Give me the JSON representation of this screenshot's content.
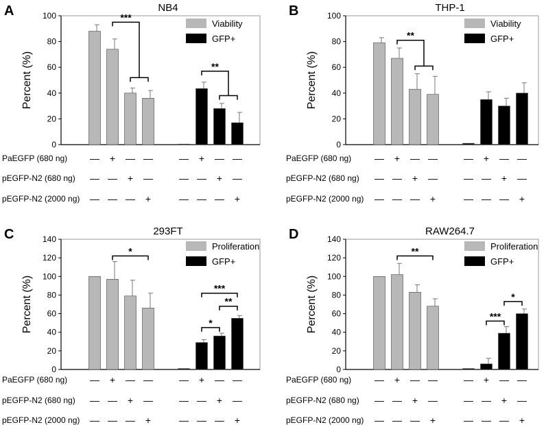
{
  "colors": {
    "viability": "#b8b8b8",
    "gfp": "#000000",
    "axis": "#000000",
    "error": "#777777"
  },
  "legend_labels": {
    "viability": "Viability",
    "proliferation": "Proliferation",
    "gfp": "GFP+"
  },
  "row_labels": [
    "PaEGFP (680 ng)",
    "pEGFP-N2 (680 ng)",
    "pEGFP-N2 (2000 ng)"
  ],
  "matrix": [
    [
      "—",
      "+",
      "—",
      "—",
      "—",
      "+",
      "—",
      "—"
    ],
    [
      "—",
      "—",
      "+",
      "—",
      "—",
      "—",
      "+",
      "—"
    ],
    [
      "—",
      "—",
      "—",
      "+",
      "—",
      "—",
      "—",
      "+"
    ]
  ],
  "chart_data": [
    {
      "type": "bar",
      "panel_letter": "A",
      "title": "NB4",
      "ylabel": "Percent (%)",
      "ylim": [
        0,
        100
      ],
      "yticks": [
        "0",
        "20",
        "40",
        "60",
        "80",
        "100"
      ],
      "legend_key": "viability",
      "series": [
        {
          "name": "Viability",
          "values": [
            88,
            74,
            40,
            36
          ],
          "errors": [
            5,
            8,
            4,
            6
          ]
        },
        {
          "name": "GFP+",
          "values": [
            0.3,
            43.5,
            28,
            17
          ],
          "errors": [
            0,
            5,
            4,
            8
          ]
        }
      ],
      "significance": [
        {
          "label": "***",
          "type": "bracket",
          "x1": 1,
          "x2": 2.5,
          "y": 95,
          "drop": 5,
          "sub": [
            2,
            3,
            52,
            2
          ]
        },
        {
          "label": "**",
          "type": "bracket",
          "x1": 5,
          "x2": 6.5,
          "y": 57,
          "drop": 5,
          "sub": [
            6,
            7,
            38,
            2
          ]
        }
      ]
    },
    {
      "type": "bar",
      "panel_letter": "B",
      "title": "THP-1",
      "ylabel": "Percent (%)",
      "ylim": [
        0,
        100
      ],
      "yticks": [
        "0",
        "20",
        "40",
        "60",
        "80",
        "100"
      ],
      "legend_key": "viability",
      "series": [
        {
          "name": "Viability",
          "values": [
            79,
            67,
            43,
            39
          ],
          "errors": [
            4,
            8,
            12,
            14
          ]
        },
        {
          "name": "GFP+",
          "values": [
            1,
            35,
            30,
            40
          ],
          "errors": [
            0,
            6,
            6,
            8
          ]
        }
      ],
      "significance": [
        {
          "label": "**",
          "type": "bracket",
          "x1": 1,
          "x2": 2.5,
          "y": 81,
          "drop": 5,
          "sub": [
            2,
            3,
            61,
            3
          ]
        }
      ]
    },
    {
      "type": "bar",
      "panel_letter": "C",
      "title": "293FT",
      "ylabel": "Percent (%)",
      "ylim": [
        0,
        140
      ],
      "yticks": [
        "0",
        "20",
        "40",
        "60",
        "80",
        "100",
        "120",
        "140"
      ],
      "legend_key": "proliferation",
      "series": [
        {
          "name": "Proliferation",
          "values": [
            100,
            97,
            79,
            66
          ],
          "errors": [
            0,
            19,
            17,
            16
          ]
        },
        {
          "name": "GFP+",
          "values": [
            1,
            29,
            36,
            55
          ],
          "errors": [
            0,
            3,
            3,
            3
          ]
        }
      ],
      "significance": [
        {
          "label": "*",
          "type": "line",
          "x1": 1,
          "x2": 3,
          "y": 122,
          "drop": 5
        },
        {
          "label": "***",
          "type": "line",
          "x1": 5,
          "x2": 7,
          "y": 82,
          "drop": 5
        },
        {
          "label": "**",
          "type": "line",
          "x1": 6,
          "x2": 7,
          "y": 68,
          "drop": 5
        },
        {
          "label": "*",
          "type": "line",
          "x1": 5,
          "x2": 6,
          "y": 45,
          "drop": 5
        }
      ]
    },
    {
      "type": "bar",
      "panel_letter": "D",
      "title": "RAW264.7",
      "ylabel": "Percent (%)",
      "ylim": [
        0,
        140
      ],
      "yticks": [
        "0",
        "20",
        "40",
        "60",
        "80",
        "100",
        "120",
        "140"
      ],
      "legend_key": "proliferation",
      "series": [
        {
          "name": "Proliferation",
          "values": [
            100,
            102,
            83,
            68
          ],
          "errors": [
            0,
            12,
            8,
            8
          ]
        },
        {
          "name": "GFP+",
          "values": [
            1,
            6,
            39,
            60
          ],
          "errors": [
            0,
            6,
            7,
            5
          ]
        }
      ],
      "significance": [
        {
          "label": "**",
          "type": "line",
          "x1": 1,
          "x2": 3,
          "y": 122,
          "drop": 5
        },
        {
          "label": "***",
          "type": "line",
          "x1": 5,
          "x2": 6,
          "y": 52,
          "drop": 5
        },
        {
          "label": "*",
          "type": "line",
          "x1": 6,
          "x2": 7,
          "y": 73,
          "drop": 5
        }
      ]
    }
  ]
}
